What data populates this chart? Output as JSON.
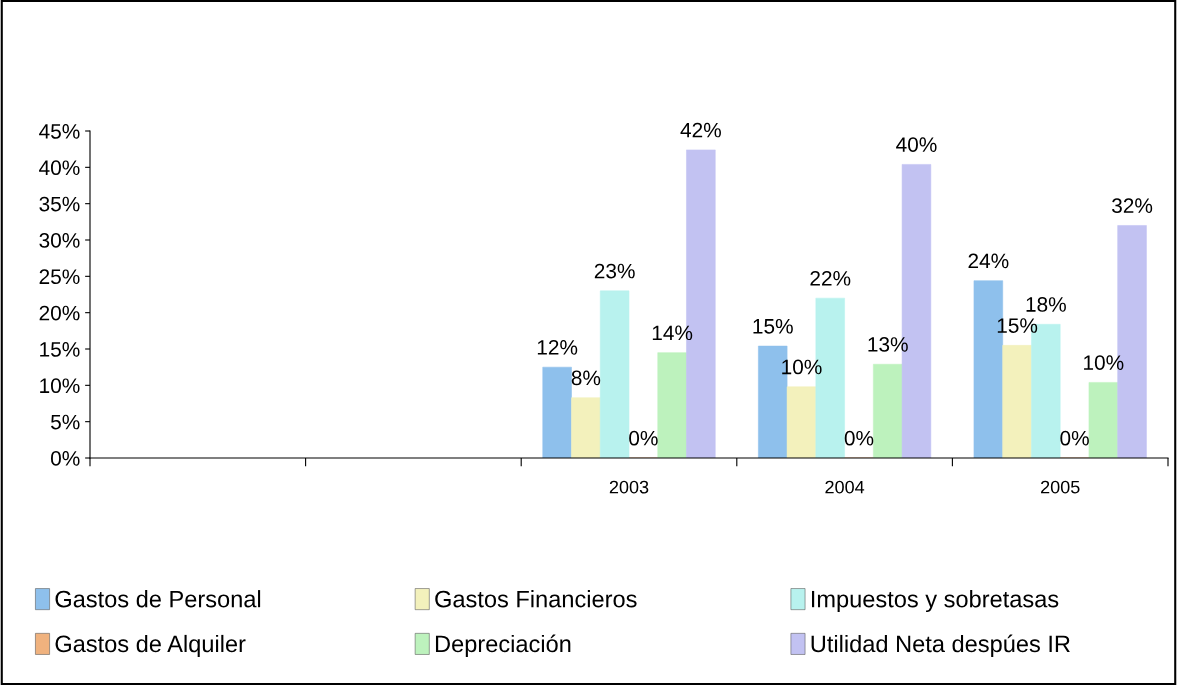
{
  "chart_data": {
    "type": "bar",
    "categories": [
      null,
      null,
      "2003",
      "2004",
      "2005"
    ],
    "series": [
      {
        "name": "Gastos de Personal",
        "color": "#8ec0ec",
        "values": [
          null,
          null,
          12.5,
          15.4,
          24.4
        ],
        "value_labels": [
          null,
          null,
          "12%",
          "15%",
          "24%"
        ]
      },
      {
        "name": "Gastos Financieros",
        "color": "#f3f1bc",
        "values": [
          null,
          null,
          8.3,
          9.8,
          15.5
        ],
        "value_labels": [
          null,
          null,
          "8%",
          "10%",
          "15%"
        ]
      },
      {
        "name": "Impuestos y sobretasas",
        "color": "#b8f2ee",
        "values": [
          null,
          null,
          23.0,
          22.0,
          18.4
        ],
        "value_labels": [
          null,
          null,
          "23%",
          "22%",
          "18%"
        ]
      },
      {
        "name": "Gastos de Alquiler",
        "color": "#f0b27e",
        "values": [
          null,
          null,
          0,
          0,
          0
        ],
        "value_labels": [
          null,
          null,
          "0%",
          "0%",
          "0%"
        ]
      },
      {
        "name": "Depreciación",
        "color": "#bdf2bd",
        "values": [
          null,
          null,
          14.5,
          12.9,
          10.4
        ],
        "value_labels": [
          null,
          null,
          "14%",
          "13%",
          "10%"
        ]
      },
      {
        "name": "Utilidad Neta despúes IR",
        "color": "#c2c2f2",
        "values": [
          null,
          null,
          42.4,
          40.4,
          32.0
        ],
        "value_labels": [
          null,
          null,
          "42%",
          "40%",
          "32%"
        ]
      }
    ],
    "ylim": [
      0,
      45
    ],
    "yticks": [
      {
        "value": 0,
        "label": "0%"
      },
      {
        "value": 5,
        "label": "5%"
      },
      {
        "value": 10,
        "label": "10%"
      },
      {
        "value": 15,
        "label": "15%"
      },
      {
        "value": 20,
        "label": "20%"
      },
      {
        "value": 25,
        "label": "25%"
      },
      {
        "value": 30,
        "label": "30%"
      },
      {
        "value": 35,
        "label": "35%"
      },
      {
        "value": 40,
        "label": "40%"
      },
      {
        "value": 45,
        "label": "45%"
      }
    ],
    "grid": false,
    "legend": "bottom"
  }
}
